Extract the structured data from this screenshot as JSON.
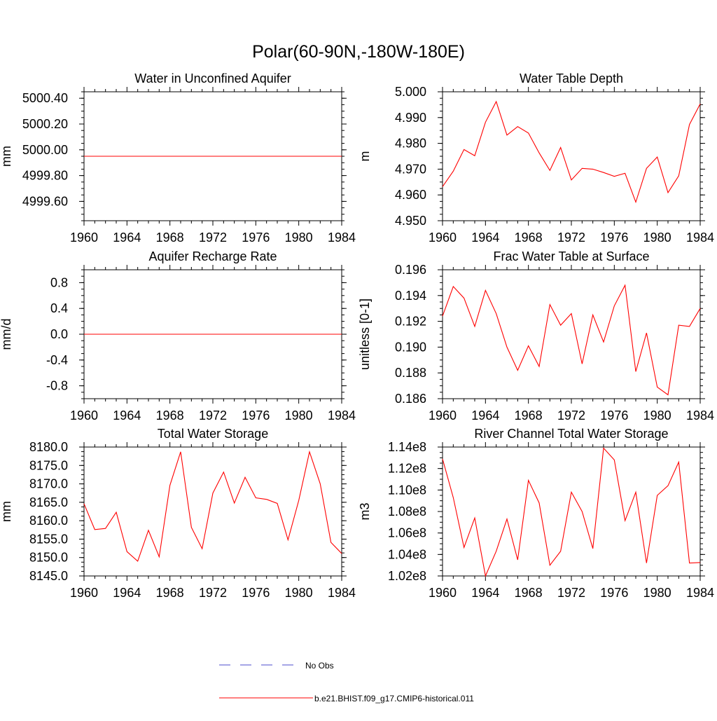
{
  "figure": {
    "title": "Polar(60-90N,-180W-180E)",
    "legend": [
      {
        "label": "No Obs",
        "color": "#4d4dcc",
        "style": "dashed"
      },
      {
        "label": "b.e21.BHIST.f09_g17.CMIP6-historical.011",
        "color": "#ff0000",
        "style": "solid"
      }
    ]
  },
  "chart_data": [
    {
      "type": "line",
      "title": "Water in Unconfined Aquifer",
      "ylabel": "mm",
      "xlim": [
        1960,
        1984
      ],
      "ylim": [
        4999.45,
        5000.45
      ],
      "xticks": [
        1960,
        1964,
        1968,
        1972,
        1976,
        1980,
        1984
      ],
      "yticks": [
        4999.6,
        4999.8,
        5000.0,
        5000.2,
        5000.4
      ],
      "ytick_labels": [
        "4999.60",
        "4999.80",
        "5000.00",
        "5000.20",
        "5000.40"
      ],
      "y_minor_step": 0.05,
      "x": [
        1960,
        1984
      ],
      "series": [
        {
          "color": "#ff0000",
          "values": [
            4999.95,
            4999.95
          ]
        }
      ]
    },
    {
      "type": "line",
      "title": "Water Table Depth",
      "ylabel": "m",
      "xlim": [
        1960,
        1984
      ],
      "ylim": [
        4.95,
        5.0
      ],
      "xticks": [
        1960,
        1964,
        1968,
        1972,
        1976,
        1980,
        1984
      ],
      "yticks": [
        4.95,
        4.96,
        4.97,
        4.98,
        4.99,
        5.0
      ],
      "ytick_labels": [
        "4.950",
        "4.960",
        "4.970",
        "4.980",
        "4.990",
        "5.000"
      ],
      "y_minor_step": 0.0025,
      "x": [
        1960,
        1961,
        1962,
        1963,
        1964,
        1965,
        1966,
        1967,
        1968,
        1969,
        1970,
        1971,
        1972,
        1973,
        1974,
        1975,
        1976,
        1977,
        1978,
        1979,
        1980,
        1981,
        1982,
        1983,
        1984
      ],
      "series": [
        {
          "color": "#ff0000",
          "values": [
            4.9632,
            4.9692,
            4.9776,
            4.9752,
            4.9882,
            4.9962,
            4.9832,
            4.9865,
            4.984,
            4.9763,
            4.9695,
            4.9784,
            4.9658,
            4.9703,
            4.97,
            4.9687,
            4.9672,
            4.9684,
            4.9572,
            4.9703,
            4.9747,
            4.9609,
            4.9674,
            4.9873,
            4.9953
          ]
        }
      ]
    },
    {
      "type": "line",
      "title": "Aquifer Recharge Rate",
      "ylabel": "mm/d",
      "xlim": [
        1960,
        1984
      ],
      "ylim": [
        -1.0,
        1.0
      ],
      "xticks": [
        1960,
        1964,
        1968,
        1972,
        1976,
        1980,
        1984
      ],
      "yticks": [
        -0.8,
        -0.4,
        0.0,
        0.4,
        0.8
      ],
      "ytick_labels": [
        "-0.8",
        "-0.4",
        "0.0",
        "0.4",
        "0.8"
      ],
      "y_minor_step": 0.1,
      "x": [
        1960,
        1984
      ],
      "series": [
        {
          "color": "#ff0000",
          "values": [
            0.0,
            0.0
          ]
        }
      ]
    },
    {
      "type": "line",
      "title": "Frac Water Table at Surface",
      "ylabel": "unitless [0-1]",
      "xlim": [
        1960,
        1984
      ],
      "ylim": [
        0.186,
        0.196
      ],
      "xticks": [
        1960,
        1964,
        1968,
        1972,
        1976,
        1980,
        1984
      ],
      "yticks": [
        0.186,
        0.188,
        0.19,
        0.192,
        0.194,
        0.196
      ],
      "ytick_labels": [
        "0.186",
        "0.188",
        "0.190",
        "0.192",
        "0.194",
        "0.196"
      ],
      "y_minor_step": 0.0005,
      "x": [
        1960,
        1961,
        1962,
        1963,
        1964,
        1965,
        1966,
        1967,
        1968,
        1969,
        1970,
        1971,
        1972,
        1973,
        1974,
        1975,
        1976,
        1977,
        1978,
        1979,
        1980,
        1981,
        1982,
        1983,
        1984
      ],
      "series": [
        {
          "color": "#ff0000",
          "values": [
            0.1924,
            0.1947,
            0.1938,
            0.1916,
            0.1944,
            0.1926,
            0.19,
            0.1882,
            0.1901,
            0.1885,
            0.1933,
            0.1917,
            0.1926,
            0.1887,
            0.1925,
            0.1904,
            0.1932,
            0.1948,
            0.1881,
            0.1911,
            0.1869,
            0.1863,
            0.1917,
            0.1916,
            0.193
          ]
        }
      ]
    },
    {
      "type": "line",
      "title": "Total Water Storage",
      "ylabel": "mm",
      "xlim": [
        1960,
        1984
      ],
      "ylim": [
        8145.0,
        8180.0
      ],
      "xticks": [
        1960,
        1964,
        1968,
        1972,
        1976,
        1980,
        1984
      ],
      "yticks": [
        8145,
        8150,
        8155,
        8160,
        8165,
        8170,
        8175,
        8180
      ],
      "ytick_labels": [
        "8145.0",
        "8150.0",
        "8155.0",
        "8160.0",
        "8165.0",
        "8170.0",
        "8175.0",
        "8180.0"
      ],
      "y_minor_step": 1.25,
      "x": [
        1960,
        1961,
        1962,
        1963,
        1964,
        1965,
        1966,
        1967,
        1968,
        1969,
        1970,
        1971,
        1972,
        1973,
        1974,
        1975,
        1976,
        1977,
        1978,
        1979,
        1980,
        1981,
        1982,
        1983,
        1984
      ],
      "series": [
        {
          "color": "#ff0000",
          "values": [
            8164.6,
            8157.6,
            8157.9,
            8162.3,
            8151.6,
            8149.0,
            8157.4,
            8150.2,
            8169.6,
            8178.7,
            8158.2,
            8152.4,
            8167.5,
            8173.2,
            8164.8,
            8171.8,
            8166.2,
            8165.8,
            8164.7,
            8154.8,
            8165.5,
            8178.7,
            8170.0,
            8154.1,
            8151.1
          ]
        }
      ]
    },
    {
      "type": "line",
      "title": "River Channel Total Water Storage",
      "ylabel": "m3",
      "xlim": [
        1960,
        1984
      ],
      "ylim": [
        102000000,
        114000000
      ],
      "xticks": [
        1960,
        1964,
        1968,
        1972,
        1976,
        1980,
        1984
      ],
      "yticks": [
        102000000,
        104000000,
        106000000,
        108000000,
        110000000,
        112000000,
        114000000
      ],
      "ytick_labels": [
        "1.02e8",
        "1.04e8",
        "1.06e8",
        "1.08e8",
        "1.10e8",
        "1.12e8",
        "1.14e8"
      ],
      "y_minor_step": 500000,
      "x": [
        1960,
        1961,
        1962,
        1963,
        1964,
        1965,
        1966,
        1967,
        1968,
        1969,
        1970,
        1971,
        1972,
        1973,
        1974,
        1975,
        1976,
        1977,
        1978,
        1979,
        1980,
        1981,
        1982,
        1983,
        1984
      ],
      "series": [
        {
          "color": "#ff0000",
          "values": [
            112900000,
            109300000,
            104650000,
            107400000,
            102000000,
            104300000,
            107300000,
            103500000,
            110900000,
            108800000,
            103000000,
            104300000,
            109800000,
            108000000,
            104550000,
            113900000,
            112800000,
            107150000,
            109800000,
            103200000,
            109500000,
            110400000,
            112600000,
            103200000,
            103250000
          ]
        }
      ]
    }
  ]
}
